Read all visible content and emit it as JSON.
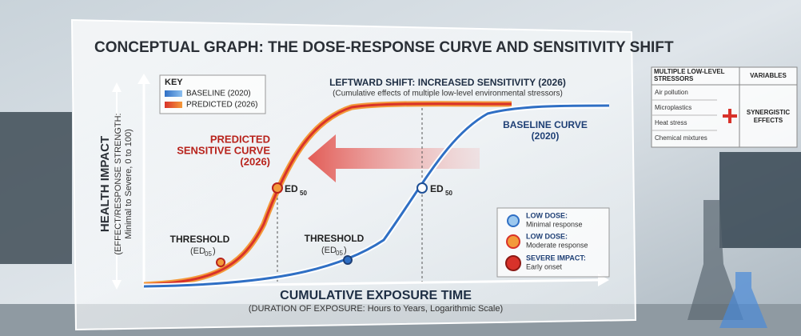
{
  "title": "CONCEPTUAL GRAPH: THE DOSE-RESPONSE CURVE AND SENSITIVITY SHIFT",
  "y_axis": {
    "title": "HEALTH IMPACT",
    "line1": "(EFFECT/RESPONSE STRENGTH:",
    "line2": "Minimal to Severe, 0 to 100)"
  },
  "x_axis": {
    "title": "CUMULATIVE EXPOSURE TIME",
    "subtitle": "(DURATION OF EXPOSURE: Hours to Years, Logarithmic Scale)"
  },
  "key": {
    "title": "KEY",
    "items": [
      "BASELINE (2020)",
      "PREDICTED (2026)"
    ]
  },
  "shift": {
    "title": "LEFTWARD SHIFT: INCREASED SENSITIVITY (2026)",
    "note": "(Cumulative effects of multiple low-level environmental stressors)"
  },
  "predicted_curve": {
    "lines": [
      "PREDICTED",
      "SENSITIVE CURVE",
      "(2026)"
    ]
  },
  "baseline_curve": {
    "lines": [
      "BASELINE CURVE",
      "(2020)"
    ]
  },
  "ed50_predicted": [
    "ED",
    "50"
  ],
  "ed50_baseline": [
    "ED",
    "50"
  ],
  "threshold_predicted": {
    "title": "THRESHOLD",
    "parts": [
      "(ED",
      "05",
      ")"
    ]
  },
  "threshold_baseline": {
    "title": "THRESHOLD",
    "parts": [
      "(ED",
      "05",
      ")"
    ]
  },
  "legend": [
    {
      "title": "LOW DOSE:",
      "text": "Minimal response"
    },
    {
      "title": "LOW DOSE:",
      "text": "Moderate response"
    },
    {
      "title": "SEVERE IMPACT:",
      "text": "Early onset"
    }
  ],
  "table": {
    "headers": [
      "MULTIPLE LOW-LEVEL STRESSORS",
      "VARIABLES"
    ],
    "rows": [
      "Air pollution",
      "Microplastics",
      "Heat stress",
      "Chemical mixtures"
    ],
    "result": "SYNERGISTIC EFFECTS"
  }
}
